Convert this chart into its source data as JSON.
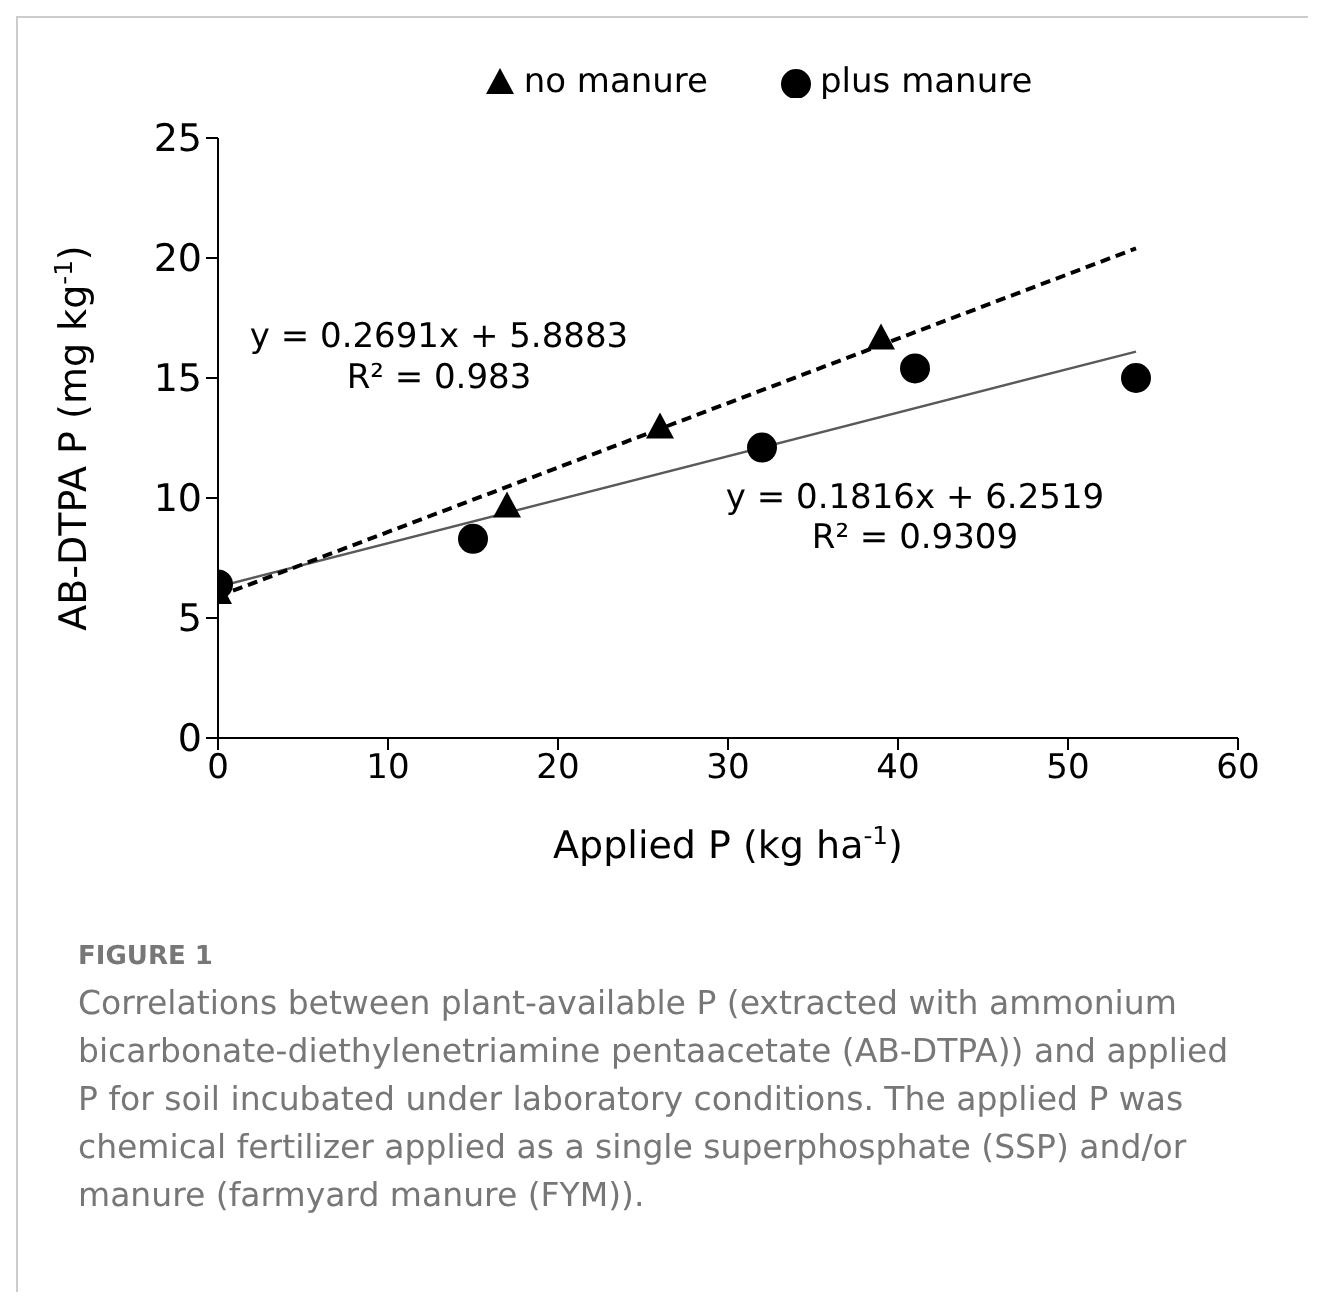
{
  "chart_data": {
    "type": "scatter",
    "xlabel": "Applied P (kg ha$^{-1}$)",
    "ylabel": "AB-DTPA P (mg kg$^{-1}$)",
    "xlim": [
      0,
      60
    ],
    "xticks": [
      0,
      10,
      20,
      30,
      40,
      50,
      60
    ],
    "ylim": [
      0,
      25
    ],
    "yticks": [
      0,
      5,
      10,
      15,
      20,
      25
    ],
    "grid": false,
    "legend": "top",
    "series": [
      {
        "name": "no manure",
        "color": "#000000",
        "marker": "triangle",
        "x": [
          0,
          17,
          26,
          39
        ],
        "values": [
          6.0,
          9.6,
          12.9,
          16.6
        ]
      },
      {
        "name": "plus manure",
        "color": "#000000",
        "marker": "circle",
        "x": [
          0,
          15,
          32,
          41,
          54
        ],
        "values": [
          6.4,
          8.3,
          12.1,
          15.4,
          15.0
        ]
      },
      {
        "type": "line",
        "color": "#000000",
        "marker": "none",
        "line_style": "dashed",
        "x": [
          0,
          54
        ],
        "values": [
          5.9,
          20.4
        ]
      },
      {
        "type": "line",
        "color": "#595959",
        "marker": "none",
        "line_style": "solid",
        "x": [
          0,
          54
        ],
        "values": [
          6.3,
          16.1
        ]
      }
    ],
    "annotations": [
      "y = 0.2691x + 5.8883",
      "R² = 0.983",
      "y = 0.1816x + 6.2519",
      "R² = 0.9309",
      "FIGURE 1",
      "Correlations between plant-available P (extracted with ammonium bicarbonate-diethylenetriamine pentaacetate (AB-DTPA)) and applied P for soil incubated under laboratory conditions. The applied P was chemical fertilizer applied as a single superphosphate (SSP) and/or manure (farmyard manure (FYM))."
    ]
  }
}
